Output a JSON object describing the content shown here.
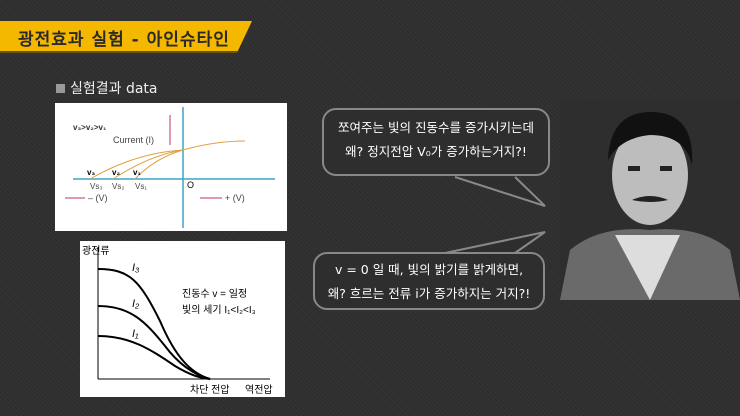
{
  "header": {
    "title": "광전효과 실험 - 아인슈타인",
    "accent": "#f5b800"
  },
  "section": {
    "label": "실험결과 data"
  },
  "figure1": {
    "legend": "v₃>v₂>v₁",
    "current": "Current (I)",
    "v_labels": [
      "v₃",
      "v₂",
      "v₁"
    ],
    "vs_labels": [
      "Vs₃",
      "Vs₂",
      "Vs₁"
    ],
    "origin": "O",
    "neg": "– (V)",
    "pos": "+ (V)"
  },
  "figure2": {
    "ylabel": "광전류",
    "curves": [
      "I₃",
      "I₂",
      "I₁"
    ],
    "note1": "진동수 v = 일정",
    "note2": "빛의 세기 I₁<I₂<I₃",
    "x_label1": "차단 전압",
    "x_label2": "역전압"
  },
  "bubbles": [
    {
      "line1": "쪼여주는 빛의 진동수를 증가시키는데",
      "line2": "왜? 정지전압 V₀가 증가하는거지?!"
    },
    {
      "line1": "v = 0 일 때, 빛의 밝기를 밝게하면,",
      "line2": "왜? 흐르는 전류 i가 증가하지는 거지?!"
    }
  ]
}
